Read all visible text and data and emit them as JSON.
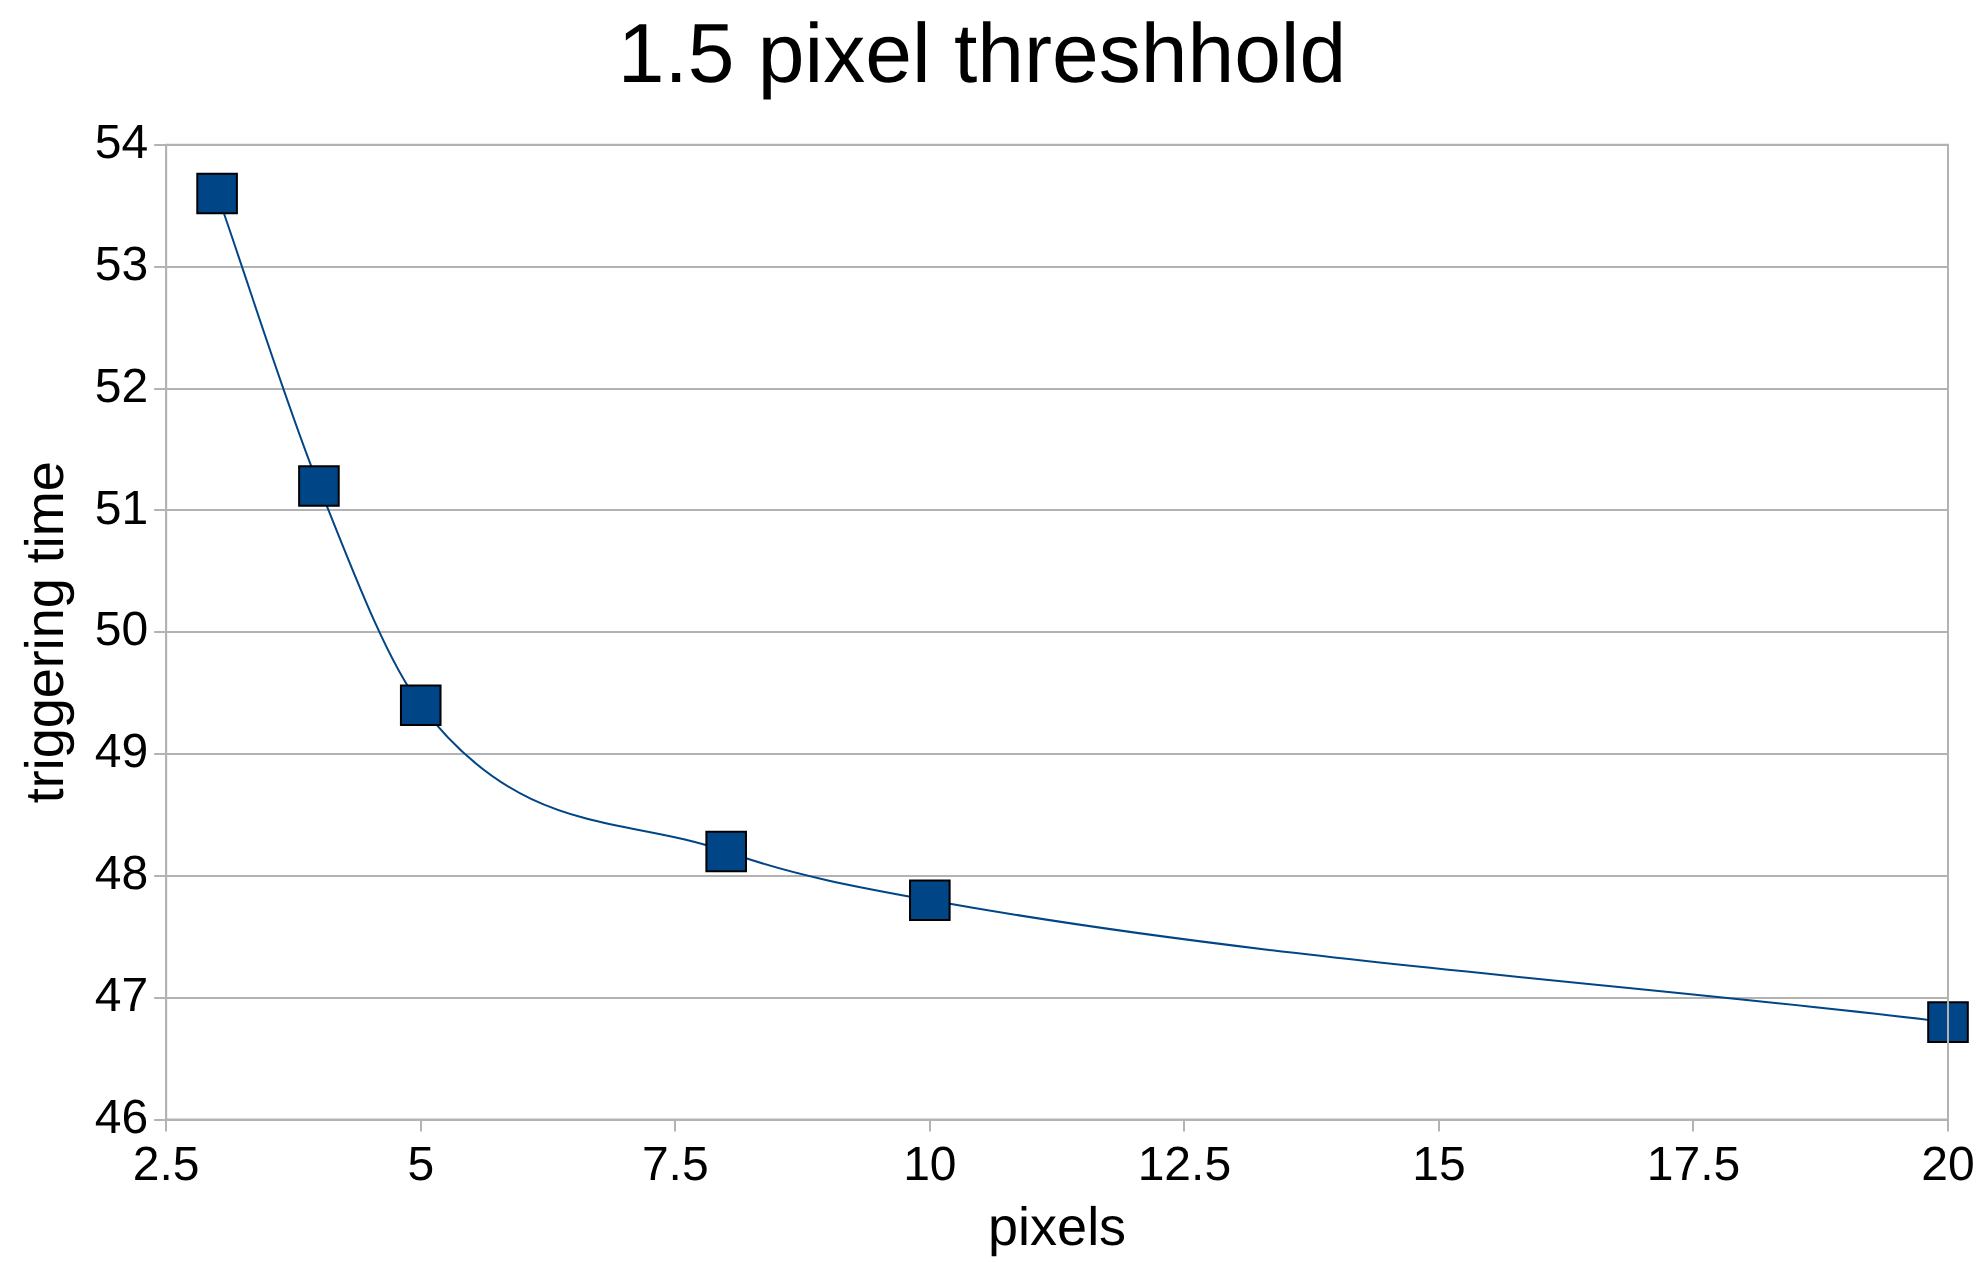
{
  "chart_data": {
    "type": "line",
    "title": "1.5 pixel threshhold",
    "xlabel": "pixels",
    "ylabel": "triggering time",
    "x": [
      3,
      4,
      5,
      8,
      10,
      20
    ],
    "series": [
      {
        "color": "#004586",
        "values": [
          53.6,
          51.2,
          49.4,
          48.2,
          47.8,
          46.8
        ]
      }
    ],
    "xlim": [
      2.5,
      20
    ],
    "xticks": [
      2.5,
      5,
      7.5,
      10,
      12.5,
      15,
      17.5,
      20
    ],
    "ylim": [
      46,
      54
    ],
    "yticks": [
      46,
      47,
      48,
      49,
      50,
      51,
      52,
      53,
      54
    ],
    "grid": "y",
    "legend": false,
    "marker": "square",
    "line_style": "solid"
  }
}
